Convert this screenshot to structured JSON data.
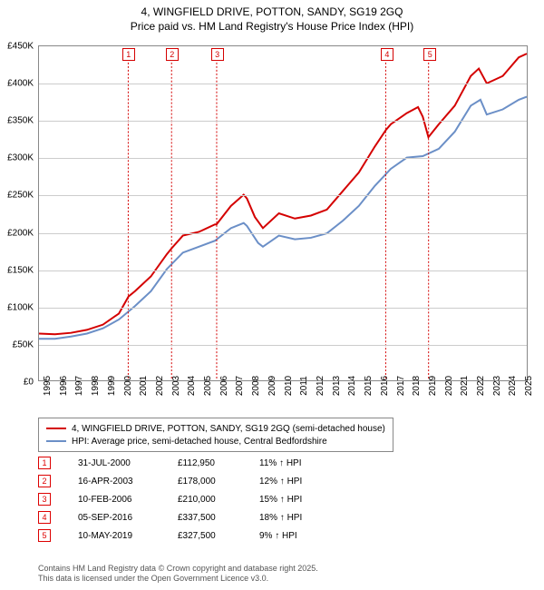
{
  "title": {
    "line1": "4, WINGFIELD DRIVE, POTTON, SANDY, SG19 2GQ",
    "line2": "Price paid vs. HM Land Registry's House Price Index (HPI)",
    "fontsize": 12,
    "color": "#000000"
  },
  "chart": {
    "type": "line",
    "background_color": "#ffffff",
    "grid_color": "#cccccc",
    "border_color": "#888888",
    "x_axis": {
      "min": 1995,
      "max": 2025.5,
      "ticks": [
        1995,
        1996,
        1997,
        1998,
        1999,
        2000,
        2001,
        2002,
        2003,
        2004,
        2005,
        2006,
        2007,
        2008,
        2009,
        2010,
        2011,
        2012,
        2013,
        2014,
        2015,
        2016,
        2017,
        2018,
        2019,
        2020,
        2021,
        2022,
        2023,
        2024,
        2025
      ],
      "label_fontsize": 10
    },
    "y_axis": {
      "min": 0,
      "max": 450000,
      "ticks": [
        0,
        50000,
        100000,
        150000,
        200000,
        250000,
        300000,
        350000,
        400000,
        450000
      ],
      "tick_labels": [
        "£0",
        "£50K",
        "£100K",
        "£150K",
        "£200K",
        "£250K",
        "£300K",
        "£350K",
        "£400K",
        "£450K"
      ],
      "label_fontsize": 10
    },
    "series": [
      {
        "id": "property",
        "label": "4, WINGFIELD DRIVE, POTTON, SANDY, SG19 2GQ (semi-detached house)",
        "color": "#d40000",
        "line_width": 2,
        "points": [
          [
            1995,
            63000
          ],
          [
            1996,
            62000
          ],
          [
            1997,
            64000
          ],
          [
            1998,
            68000
          ],
          [
            1999,
            75000
          ],
          [
            2000,
            90000
          ],
          [
            2000.6,
            112950
          ],
          [
            2001,
            120000
          ],
          [
            2002,
            140000
          ],
          [
            2003,
            170000
          ],
          [
            2003.3,
            178000
          ],
          [
            2004,
            195000
          ],
          [
            2005,
            200000
          ],
          [
            2006,
            210000
          ],
          [
            2006.1,
            210000
          ],
          [
            2007,
            235000
          ],
          [
            2007.8,
            250000
          ],
          [
            2008,
            245000
          ],
          [
            2008.5,
            220000
          ],
          [
            2009,
            205000
          ],
          [
            2010,
            225000
          ],
          [
            2011,
            218000
          ],
          [
            2012,
            222000
          ],
          [
            2013,
            230000
          ],
          [
            2014,
            255000
          ],
          [
            2015,
            280000
          ],
          [
            2016,
            315000
          ],
          [
            2016.7,
            337500
          ],
          [
            2017,
            345000
          ],
          [
            2018,
            360000
          ],
          [
            2018.7,
            368000
          ],
          [
            2019,
            355000
          ],
          [
            2019.35,
            327500
          ],
          [
            2020,
            345000
          ],
          [
            2021,
            370000
          ],
          [
            2022,
            410000
          ],
          [
            2022.5,
            420000
          ],
          [
            2023,
            400000
          ],
          [
            2024,
            410000
          ],
          [
            2025,
            435000
          ],
          [
            2025.5,
            440000
          ]
        ]
      },
      {
        "id": "hpi",
        "label": "HPI: Average price, semi-detached house, Central Bedfordshire",
        "color": "#6b8fc7",
        "line_width": 2,
        "points": [
          [
            1995,
            56000
          ],
          [
            1996,
            56000
          ],
          [
            1997,
            59000
          ],
          [
            1998,
            63000
          ],
          [
            1999,
            70000
          ],
          [
            2000,
            82000
          ],
          [
            2001,
            100000
          ],
          [
            2002,
            120000
          ],
          [
            2003,
            150000
          ],
          [
            2004,
            172000
          ],
          [
            2005,
            180000
          ],
          [
            2006,
            188000
          ],
          [
            2007,
            205000
          ],
          [
            2007.8,
            212000
          ],
          [
            2008,
            208000
          ],
          [
            2008.7,
            185000
          ],
          [
            2009,
            180000
          ],
          [
            2010,
            195000
          ],
          [
            2011,
            190000
          ],
          [
            2012,
            192000
          ],
          [
            2013,
            198000
          ],
          [
            2014,
            215000
          ],
          [
            2015,
            235000
          ],
          [
            2016,
            262000
          ],
          [
            2017,
            285000
          ],
          [
            2018,
            300000
          ],
          [
            2019,
            302000
          ],
          [
            2020,
            312000
          ],
          [
            2021,
            335000
          ],
          [
            2022,
            370000
          ],
          [
            2022.6,
            378000
          ],
          [
            2023,
            358000
          ],
          [
            2024,
            365000
          ],
          [
            2025,
            378000
          ],
          [
            2025.5,
            382000
          ]
        ]
      }
    ],
    "markers": [
      {
        "n": "1",
        "year": 2000.58,
        "color": "#d40000"
      },
      {
        "n": "2",
        "year": 2003.29,
        "color": "#d40000"
      },
      {
        "n": "3",
        "year": 2006.11,
        "color": "#d40000"
      },
      {
        "n": "4",
        "year": 2016.68,
        "color": "#d40000"
      },
      {
        "n": "5",
        "year": 2019.36,
        "color": "#d40000"
      }
    ]
  },
  "legend": {
    "items": [
      {
        "color": "#d40000",
        "label": "4, WINGFIELD DRIVE, POTTON, SANDY, SG19 2GQ (semi-detached house)"
      },
      {
        "color": "#6b8fc7",
        "label": "HPI: Average price, semi-detached house, Central Bedfordshire"
      }
    ],
    "fontsize": 10
  },
  "transactions": [
    {
      "n": "1",
      "date": "31-JUL-2000",
      "price": "£112,950",
      "delta": "11% ↑ HPI"
    },
    {
      "n": "2",
      "date": "16-APR-2003",
      "price": "£178,000",
      "delta": "12% ↑ HPI"
    },
    {
      "n": "3",
      "date": "10-FEB-2006",
      "price": "£210,000",
      "delta": "15% ↑ HPI"
    },
    {
      "n": "4",
      "date": "05-SEP-2016",
      "price": "£337,500",
      "delta": "18% ↑ HPI"
    },
    {
      "n": "5",
      "date": "10-MAY-2019",
      "price": "£327,500",
      "delta": "9% ↑ HPI"
    }
  ],
  "footer": {
    "line1": "Contains HM Land Registry data © Crown copyright and database right 2025.",
    "line2": "This data is licensed under the Open Government Licence v3.0.",
    "fontsize": 9,
    "color": "#555555"
  }
}
